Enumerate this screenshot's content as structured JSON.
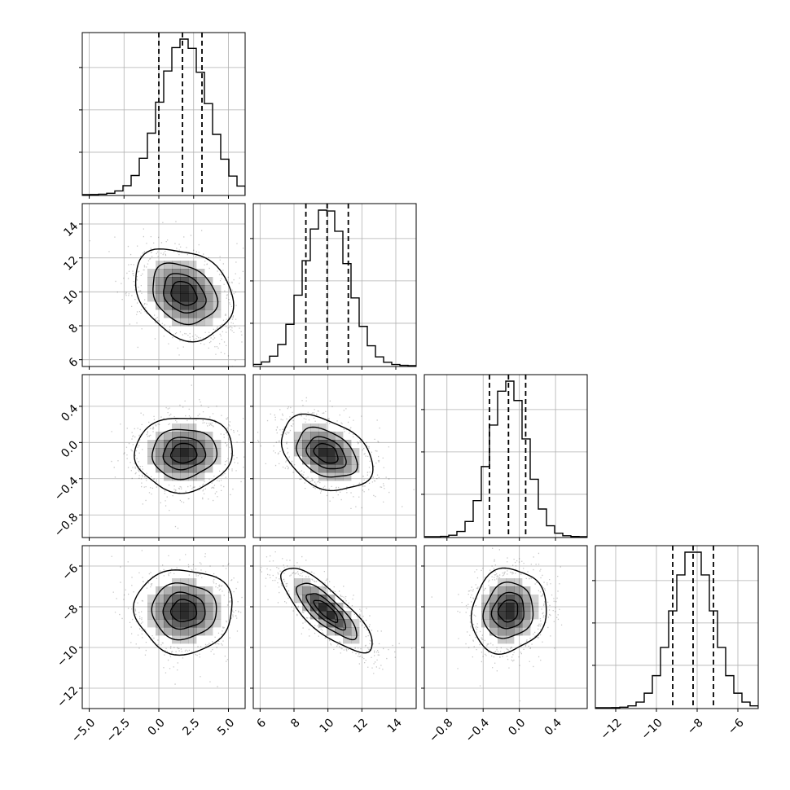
{
  "chart_data": {
    "type": "corner",
    "n_params": 4,
    "params": [
      {
        "range": [
          -5.5,
          6.2
        ],
        "ticks": [
          -5.0,
          -2.5,
          0.0,
          2.5,
          5.0
        ],
        "tick_labels": [
          "−5.0",
          "−2.5",
          "0.0",
          "2.5",
          "5.0"
        ],
        "quantiles": [
          0.0,
          1.7,
          3.1
        ],
        "mean": 1.8,
        "sd": 1.7
      },
      {
        "range": [
          5.6,
          15.2
        ],
        "ticks": [
          6,
          8,
          10,
          12,
          14
        ],
        "tick_labels": [
          "6",
          "8",
          "10",
          "12",
          "14"
        ],
        "quantiles": [
          8.7,
          9.95,
          11.2
        ],
        "mean": 9.9,
        "sd": 1.3
      },
      {
        "range": [
          -1.05,
          0.75
        ],
        "ticks": [
          -0.8,
          -0.4,
          0.0,
          0.4
        ],
        "tick_labels": [
          "−0.8",
          "−0.4",
          "0.0",
          "0.4"
        ],
        "quantiles": [
          -0.33,
          -0.12,
          0.07
        ],
        "mean": -0.12,
        "sd": 0.2
      },
      {
        "range": [
          -13.0,
          -5.0
        ],
        "ticks": [
          -12,
          -10,
          -8,
          -6
        ],
        "tick_labels": [
          "−12",
          "−10",
          "−8",
          "−6"
        ],
        "quantiles": [
          -9.2,
          -8.2,
          -7.2
        ],
        "mean": -8.2,
        "sd": 1.0
      }
    ],
    "correlations": [
      [
        1,
        2,
        -0.25
      ],
      [
        1,
        3,
        0.05
      ],
      [
        1,
        4,
        0.0
      ],
      [
        2,
        3,
        -0.35
      ],
      [
        2,
        4,
        -0.8
      ],
      [
        3,
        4,
        0.1
      ]
    ],
    "histogram_bins": 20,
    "contour_levels": [
      "0.5 sigma",
      "1 sigma",
      "1.5 sigma",
      "2 sigma"
    ],
    "quantile_line_style": "dashed",
    "grid": true,
    "colors": {
      "ink": "#000000",
      "grid": "#b0b0b0",
      "points": "#000000",
      "density": "#000000"
    }
  }
}
